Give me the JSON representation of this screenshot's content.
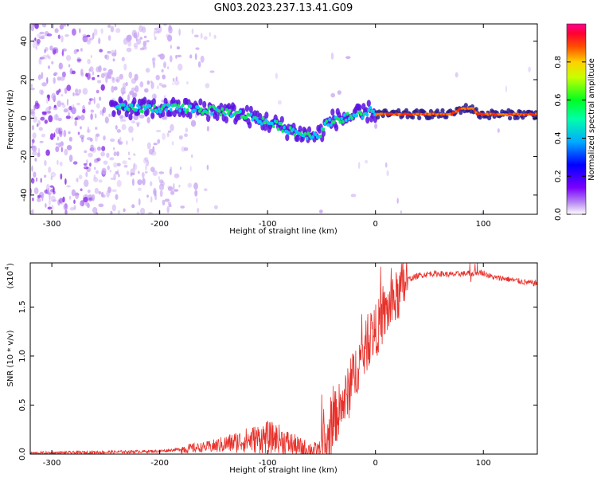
{
  "title": "GN03.2023.237.13.41.G09",
  "colors": {
    "snr_line": "#e8302a",
    "spectro_core": [
      "#00c8ff",
      "#00ff40",
      "#ff3000"
    ],
    "spectro_scatter": "#7b2bd9",
    "axis": "#000000"
  },
  "chart_data": [
    {
      "type": "heatmap",
      "name": "spectrogram",
      "xlabel": "Height of straight line (km)",
      "ylabel": "Frequency (Hz)",
      "xlim": [
        -320,
        150
      ],
      "ylim": [
        -50,
        49
      ],
      "xticks": [
        -300,
        -200,
        -100,
        0,
        100
      ],
      "yticks": [
        -40,
        -20,
        0,
        20,
        40
      ],
      "colorbar": {
        "label": "Normalized spectral amplitude",
        "range": [
          0.0,
          1.0
        ],
        "ticks": [
          "0.0",
          "0.2",
          "0.4",
          "0.6",
          "0.8"
        ],
        "colormap": [
          "#c8a8f0",
          "#7b00ff",
          "#0000ff",
          "#00c8ff",
          "#00ff40",
          "#ffff00",
          "#ff8000",
          "#ff0000",
          "#ff0080"
        ]
      },
      "ridge": {
        "x": [
          -245,
          -225,
          -200,
          -175,
          -150,
          -125,
          -100,
          -85,
          -70,
          -60,
          -55,
          -50,
          -45,
          -40,
          -30,
          -20,
          -10,
          -5,
          0,
          20,
          50,
          70,
          80,
          90,
          95,
          100,
          120,
          150
        ],
        "y": [
          5,
          5,
          5,
          5,
          4,
          2,
          -2,
          -5,
          -8,
          -9,
          -9,
          -7,
          -3,
          -1,
          0,
          1,
          2,
          4,
          2,
          2,
          2,
          2,
          5,
          5,
          2,
          2,
          2,
          2
        ]
      }
    },
    {
      "type": "line",
      "name": "snr",
      "xlabel": "Height of straight line (km)",
      "ylabel": "SNR (10 * v/v)",
      "scale_label": "(x10",
      "scale_exp": "4",
      "xlim": [
        -320,
        150
      ],
      "ylim": [
        0,
        1.95
      ],
      "xticks": [
        -300,
        -200,
        -100,
        0,
        100
      ],
      "yticks": [
        "0.0",
        "0.5",
        "1.0",
        "1.5"
      ],
      "envelope": {
        "x": [
          -320,
          -250,
          -200,
          -180,
          -150,
          -120,
          -100,
          -90,
          -70,
          -55,
          -45,
          -40,
          -35,
          -30,
          -25,
          -20,
          -15,
          -10,
          -5,
          0,
          5,
          10,
          15,
          20,
          25,
          30,
          40,
          50,
          60,
          70,
          80,
          90,
          95,
          100,
          105,
          110,
          120,
          130,
          140,
          150
        ],
        "y": [
          0.01,
          0.02,
          0.03,
          0.05,
          0.08,
          0.14,
          0.17,
          0.16,
          0.06,
          0.04,
          0.1,
          0.32,
          0.42,
          0.52,
          0.62,
          0.8,
          0.95,
          1.05,
          1.2,
          1.25,
          1.35,
          1.45,
          1.52,
          1.6,
          1.7,
          1.78,
          1.82,
          1.84,
          1.84,
          1.83,
          1.84,
          1.84,
          1.86,
          1.85,
          1.82,
          1.8,
          1.79,
          1.77,
          1.75,
          1.74
        ]
      }
    }
  ]
}
